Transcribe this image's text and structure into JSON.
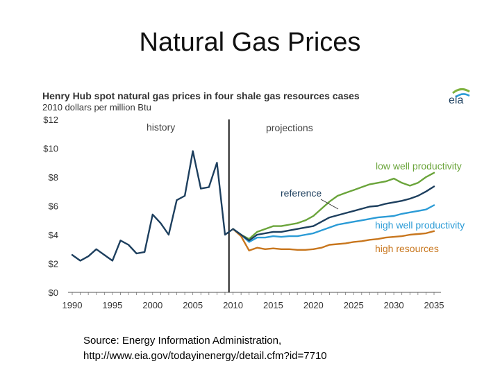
{
  "slide": {
    "title": "Natural Gas Prices",
    "source_line1": "Source: Energy Information Administration,",
    "source_line2": "http://www.eia.gov/todayinenergy/detail.cfm?id=7710"
  },
  "logo_text": "eia",
  "chart_data": {
    "type": "line",
    "title": "Henry Hub spot natural gas prices in four shale gas resources cases",
    "subtitle": "2010 dollars per million Btu",
    "xlim": [
      1990,
      2035
    ],
    "ylim": [
      0,
      12
    ],
    "x_ticks": [
      1990,
      1995,
      2000,
      2005,
      2010,
      2015,
      2020,
      2025,
      2030,
      2035
    ],
    "y_ticks": [
      0,
      2,
      4,
      6,
      8,
      10,
      12
    ],
    "y_tick_labels": [
      "$0",
      "$2",
      "$4",
      "$6",
      "$8",
      "$10",
      "$12"
    ],
    "divider_x": 2009.5,
    "section_labels": [
      "history",
      "projections"
    ],
    "colors": {
      "history": "#1d3f5e",
      "reference": "#1d3f5e",
      "low well productivity": "#6aa43a",
      "high well productivity": "#2b9bd6",
      "high resources": "#c8761d"
    },
    "series": [
      {
        "key": "history",
        "x": [
          1990,
          1991,
          1992,
          1993,
          1994,
          1995,
          1996,
          1997,
          1998,
          1999,
          2000,
          2001,
          2002,
          2003,
          2004,
          2005,
          2006,
          2007,
          2008,
          2009,
          2010
        ],
        "y": [
          2.6,
          2.2,
          2.5,
          3.0,
          2.6,
          2.2,
          3.6,
          3.3,
          2.7,
          2.8,
          5.4,
          4.8,
          4.0,
          6.4,
          6.7,
          9.8,
          7.2,
          7.3,
          9.0,
          4.0,
          4.4
        ]
      },
      {
        "key": "reference",
        "name": "reference",
        "x": [
          2010,
          2011,
          2012,
          2013,
          2014,
          2015,
          2016,
          2017,
          2018,
          2019,
          2020,
          2021,
          2022,
          2023,
          2024,
          2025,
          2026,
          2027,
          2028,
          2029,
          2030,
          2031,
          2032,
          2033,
          2034,
          2035
        ],
        "y": [
          4.4,
          4.0,
          3.6,
          4.0,
          4.1,
          4.2,
          4.2,
          4.3,
          4.4,
          4.5,
          4.6,
          4.9,
          5.2,
          5.35,
          5.5,
          5.65,
          5.8,
          5.95,
          6.0,
          6.15,
          6.25,
          6.35,
          6.5,
          6.7,
          7.0,
          7.35
        ]
      },
      {
        "key": "low well productivity",
        "name": "low well productivity",
        "x": [
          2010,
          2011,
          2012,
          2013,
          2014,
          2015,
          2016,
          2017,
          2018,
          2019,
          2020,
          2021,
          2022,
          2023,
          2024,
          2025,
          2026,
          2027,
          2028,
          2029,
          2030,
          2031,
          2032,
          2033,
          2034,
          2035
        ],
        "y": [
          4.4,
          4.0,
          3.7,
          4.2,
          4.4,
          4.6,
          4.6,
          4.7,
          4.8,
          5.0,
          5.3,
          5.8,
          6.3,
          6.7,
          6.9,
          7.1,
          7.3,
          7.5,
          7.6,
          7.7,
          7.9,
          7.6,
          7.4,
          7.6,
          8.0,
          8.3
        ]
      },
      {
        "key": "high well productivity",
        "name": "high well productivity",
        "x": [
          2010,
          2011,
          2012,
          2013,
          2014,
          2015,
          2016,
          2017,
          2018,
          2019,
          2020,
          2021,
          2022,
          2023,
          2024,
          2025,
          2026,
          2027,
          2028,
          2029,
          2030,
          2031,
          2032,
          2033,
          2034,
          2035
        ],
        "y": [
          4.4,
          4.0,
          3.5,
          3.8,
          3.8,
          3.9,
          3.85,
          3.9,
          3.9,
          4.0,
          4.1,
          4.3,
          4.5,
          4.7,
          4.8,
          4.9,
          5.0,
          5.1,
          5.2,
          5.25,
          5.3,
          5.45,
          5.55,
          5.65,
          5.75,
          6.05
        ]
      },
      {
        "key": "high resources",
        "name": "high resources",
        "x": [
          2010,
          2011,
          2012,
          2013,
          2014,
          2015,
          2016,
          2017,
          2018,
          2019,
          2020,
          2021,
          2022,
          2023,
          2024,
          2025,
          2026,
          2027,
          2028,
          2029,
          2030,
          2031,
          2032,
          2033,
          2034,
          2035
        ],
        "y": [
          4.4,
          3.9,
          2.9,
          3.1,
          3.0,
          3.05,
          3.0,
          3.0,
          2.95,
          2.95,
          3.0,
          3.1,
          3.3,
          3.35,
          3.4,
          3.5,
          3.55,
          3.65,
          3.7,
          3.8,
          3.85,
          3.9,
          4.0,
          4.05,
          4.1,
          4.25
        ]
      }
    ]
  }
}
